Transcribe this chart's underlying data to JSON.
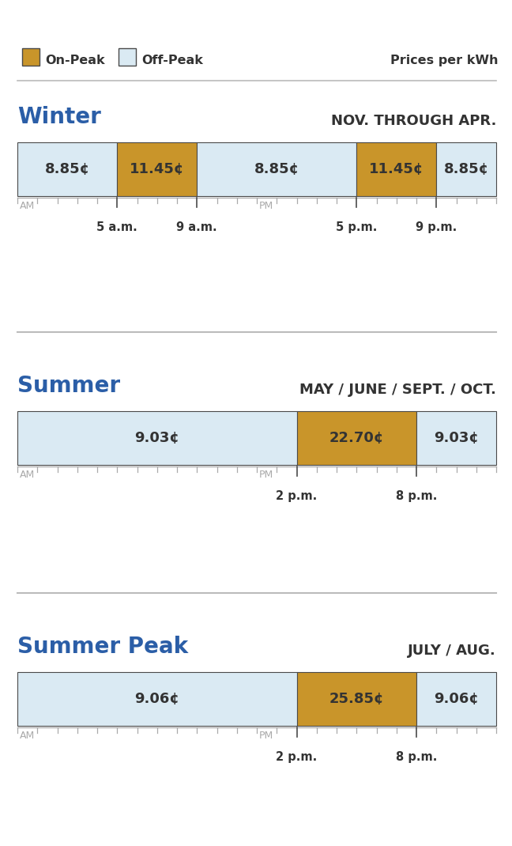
{
  "bg_color": "#ffffff",
  "off_peak_color": "#daeaf3",
  "on_peak_color": "#c9952a",
  "border_color": "#4a4a4a",
  "blue_color": "#2b5ea7",
  "text_dark": "#333333",
  "tick_color": "#aaaaaa",
  "divider_color": "#bbbbbb",
  "legend_onpeak_label": "On-Peak",
  "legend_offpeak_label": "Off-Peak",
  "prices_label": "Prices per kWh",
  "seasons": [
    {
      "name": "Winter",
      "months": "NOV. THROUGH APR.",
      "segments": [
        {
          "label": "8.85¢",
          "start": 0,
          "end": 5,
          "type": "off"
        },
        {
          "label": "11.45¢",
          "start": 5,
          "end": 9,
          "type": "on"
        },
        {
          "label": "8.85¢",
          "start": 9,
          "end": 17,
          "type": "off"
        },
        {
          "label": "11.45¢",
          "start": 17,
          "end": 21,
          "type": "on"
        },
        {
          "label": "8.85¢",
          "start": 21,
          "end": 24,
          "type": "off"
        }
      ],
      "tick_labels": [
        {
          "hour": 0,
          "label": "AM",
          "is_ampm": true
        },
        {
          "hour": 5,
          "label": "5 a.m.",
          "is_ampm": false
        },
        {
          "hour": 9,
          "label": "9 a.m.",
          "is_ampm": false
        },
        {
          "hour": 12,
          "label": "PM",
          "is_ampm": true
        },
        {
          "hour": 17,
          "label": "5 p.m.",
          "is_ampm": false
        },
        {
          "hour": 21,
          "label": "9 p.m.",
          "is_ampm": false
        }
      ],
      "tall_tick_hours": [
        5,
        9,
        17,
        21
      ]
    },
    {
      "name": "Summer",
      "months": "MAY / JUNE / SEPT. / OCT.",
      "segments": [
        {
          "label": "9.03¢",
          "start": 0,
          "end": 14,
          "type": "off"
        },
        {
          "label": "22.70¢",
          "start": 14,
          "end": 20,
          "type": "on"
        },
        {
          "label": "9.03¢",
          "start": 20,
          "end": 24,
          "type": "off"
        }
      ],
      "tick_labels": [
        {
          "hour": 0,
          "label": "AM",
          "is_ampm": true
        },
        {
          "hour": 12,
          "label": "PM",
          "is_ampm": true
        },
        {
          "hour": 14,
          "label": "2 p.m.",
          "is_ampm": false
        },
        {
          "hour": 20,
          "label": "8 p.m.",
          "is_ampm": false
        }
      ],
      "tall_tick_hours": [
        14,
        20
      ]
    },
    {
      "name": "Summer Peak",
      "months": "JULY / AUG.",
      "segments": [
        {
          "label": "9.06¢",
          "start": 0,
          "end": 14,
          "type": "off"
        },
        {
          "label": "25.85¢",
          "start": 14,
          "end": 20,
          "type": "on"
        },
        {
          "label": "9.06¢",
          "start": 20,
          "end": 24,
          "type": "off"
        }
      ],
      "tick_labels": [
        {
          "hour": 0,
          "label": "AM",
          "is_ampm": true
        },
        {
          "hour": 12,
          "label": "PM",
          "is_ampm": true
        },
        {
          "hour": 14,
          "label": "2 p.m.",
          "is_ampm": false
        },
        {
          "hour": 20,
          "label": "8 p.m.",
          "is_ampm": false
        }
      ],
      "tall_tick_hours": [
        14,
        20
      ]
    }
  ]
}
